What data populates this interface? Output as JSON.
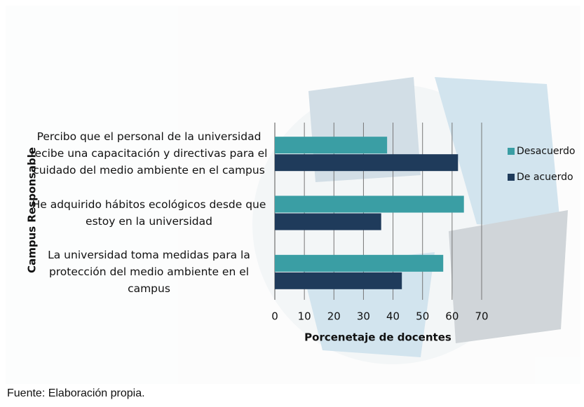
{
  "chart_data": {
    "type": "barh",
    "categories": [
      "Percibo que el personal de la universidad recibe una capacitación y directivas para el cuidado del medio ambiente en el campus",
      "He adquirido hábitos ecológicos desde que estoy en la universidad",
      "La universidad toma medidas para la protección del medio ambiente en el campus"
    ],
    "series": [
      {
        "name": "Desacuerdo",
        "color": "#3a9ea4",
        "values": [
          38,
          64,
          57
        ]
      },
      {
        "name": "De acuerdo",
        "color": "#1f3b5b",
        "values": [
          62,
          36,
          43
        ]
      }
    ],
    "xlabel": "Porcenetaje de docentes",
    "ylabel": "Campus Responsable",
    "xlim": [
      0,
      70
    ],
    "xticks": [
      0,
      10,
      20,
      30,
      40,
      50,
      60,
      70
    ],
    "grid": true,
    "legend": "right"
  },
  "source": "Fuente: Elaboración propia."
}
